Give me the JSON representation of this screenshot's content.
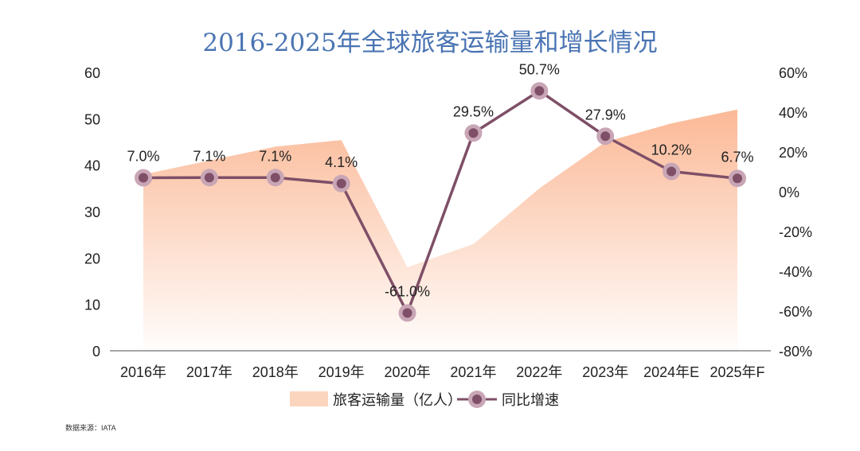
{
  "chart_data": {
    "type": "line",
    "title": "2016-2025年全球旅客运输量和增长情况",
    "categories": [
      "2016年",
      "2017年",
      "2018年",
      "2019年",
      "2020年",
      "2021年",
      "2022年",
      "2023年",
      "2024年E",
      "2025年F"
    ],
    "series": [
      {
        "name": "旅客运输量（亿人）",
        "type": "area",
        "axis": "left",
        "color": "#fbb591",
        "values": [
          38,
          41,
          44,
          45.4,
          18,
          23,
          35,
          45,
          49,
          52
        ]
      },
      {
        "name": "同比增速",
        "type": "line",
        "axis": "right",
        "color": "#7e4f67",
        "marker_halo_color": "#c9a6b6",
        "values": [
          7.0,
          7.1,
          7.1,
          4.1,
          -61.0,
          29.5,
          50.7,
          27.9,
          10.2,
          6.7
        ],
        "labels": [
          "7.0%",
          "7.1%",
          "7.1%",
          "4.1%",
          "-61.0%",
          "29.5%",
          "50.7%",
          "27.9%",
          "10.2%",
          "6.7%"
        ]
      }
    ],
    "y_left": {
      "ylim": [
        0,
        60
      ],
      "ticks": [
        "0",
        "10",
        "20",
        "30",
        "40",
        "50",
        "60"
      ]
    },
    "y_right": {
      "ylim": [
        -80,
        60
      ],
      "ticks": [
        "-80%",
        "-60%",
        "-40%",
        "-20%",
        "0%",
        "20%",
        "40%",
        "60%"
      ]
    },
    "grid": false,
    "legend": "bottom-center",
    "source": "数据来源：IATA"
  }
}
